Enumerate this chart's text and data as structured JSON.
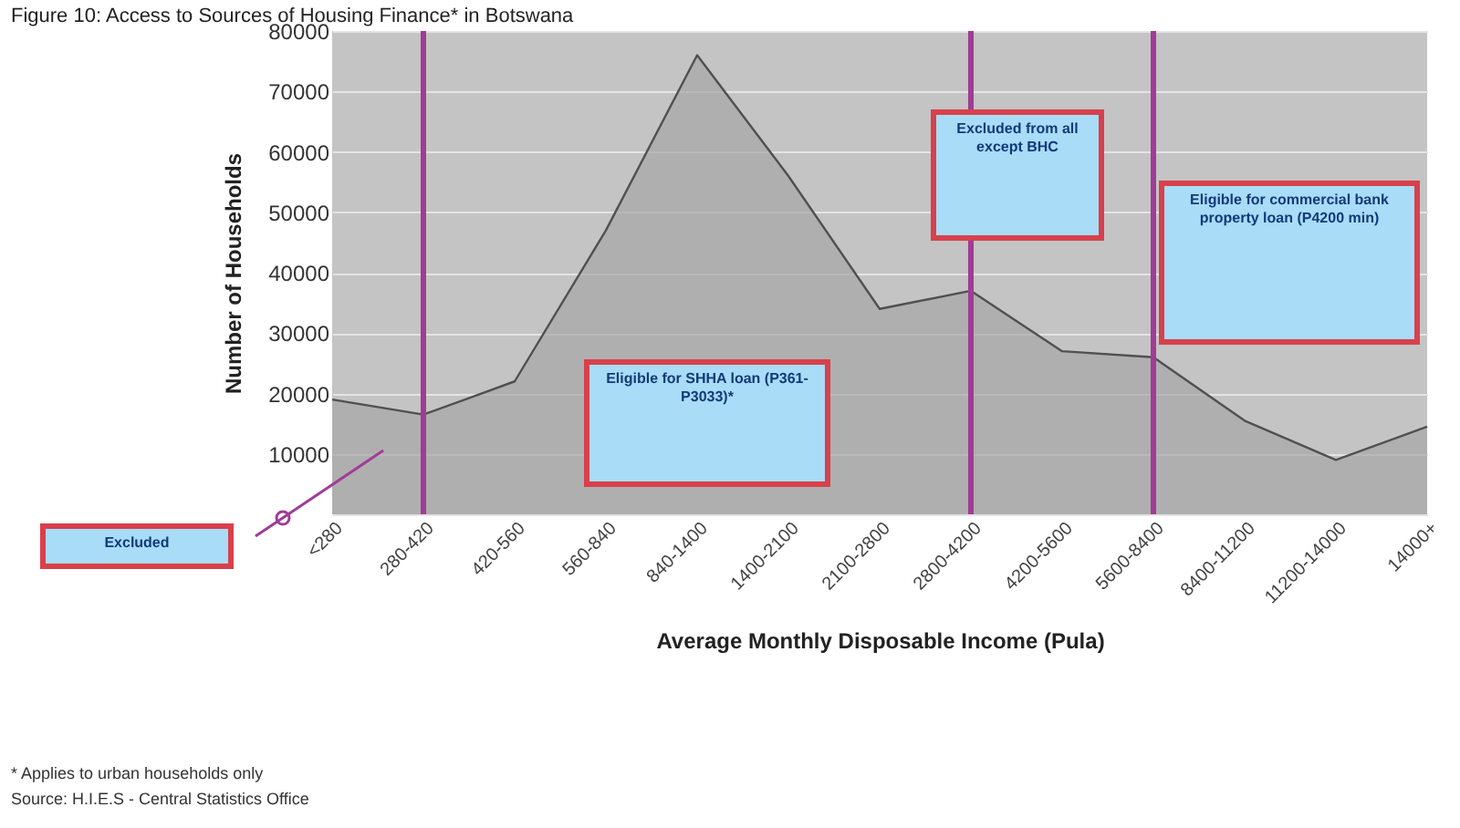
{
  "chart_data": {
    "type": "area",
    "title": "Figure 10: Access to Sources of Housing Finance* in Botswana",
    "xlabel": "Average Monthly Disposable Income (Pula)",
    "ylabel": "Number of Households",
    "categories": [
      "<280",
      "280-420",
      "420-560",
      "560-840",
      "840-1400",
      "1400-2100",
      "2100-2800",
      "2800-4200",
      "4200-5600",
      "5600-8400",
      "8400-11200",
      "11200-14000",
      "14000+"
    ],
    "values": [
      19000,
      16500,
      22000,
      47000,
      76000,
      56000,
      34000,
      37000,
      27000,
      26000,
      15500,
      9000,
      14500
    ],
    "color": "#a6a6a6",
    "ylim": [
      0,
      80000
    ],
    "yticks": [
      {
        "value": 0,
        "label": null
      },
      10000,
      20000,
      30000,
      40000,
      50000,
      60000,
      70000,
      80000
    ],
    "grid": "y",
    "ref_lines": [
      {
        "axis": "x",
        "value": "280-420",
        "color": "#a03c96"
      },
      {
        "axis": "x",
        "value": "2800-4200",
        "color": "#a03c96"
      },
      {
        "axis": "x",
        "value": "5600-8400",
        "color": "#a03c96"
      }
    ],
    "annotations": [
      "Excluded",
      "Eligible for SHHA loan (P361-P3033)*",
      "Excluded from all except BHC",
      "Eligible for commercial bank property loan (P4200 min)",
      "* Applies to urban households only",
      "Source: H.I.E.S - Central Statistics Office"
    ]
  }
}
